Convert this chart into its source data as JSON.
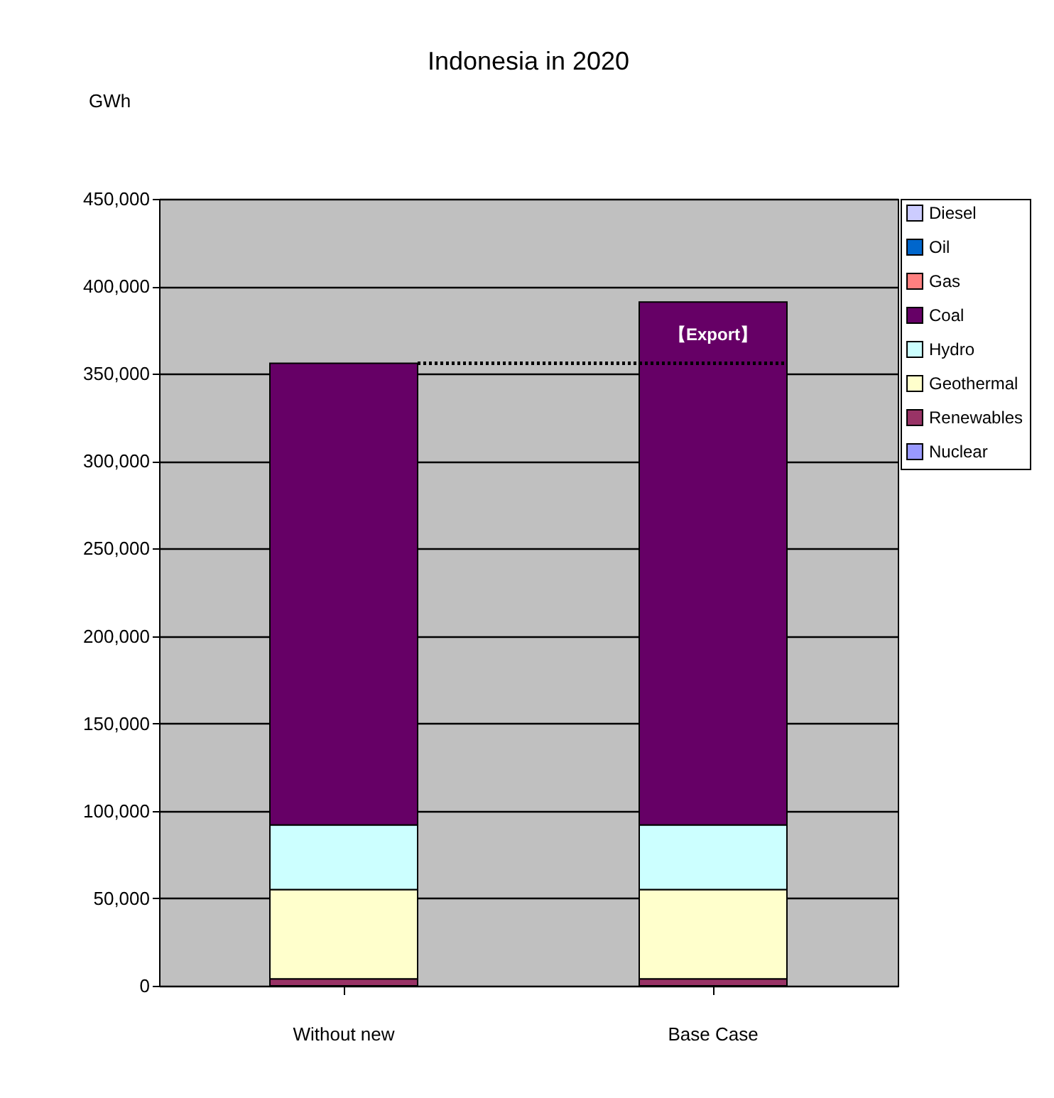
{
  "chart_data": {
    "type": "bar",
    "title": "Indonesia in 2020",
    "ylabel": "GWh",
    "categories": [
      "Without new",
      "Base Case"
    ],
    "stacked": true,
    "ylim": [
      0,
      450000
    ],
    "yticks": [
      {
        "value": 0,
        "label": "0"
      },
      {
        "value": 50000,
        "label": "50,000"
      },
      {
        "value": 100000,
        "label": "100,000"
      },
      {
        "value": 150000,
        "label": "150,000"
      },
      {
        "value": 200000,
        "label": "200,000"
      },
      {
        "value": 250000,
        "label": "250,000"
      },
      {
        "value": 300000,
        "label": "300,000"
      },
      {
        "value": 350000,
        "label": "350,000"
      },
      {
        "value": 400000,
        "label": "400,000"
      },
      {
        "value": 450000,
        "label": "450,000"
      }
    ],
    "grid": "y",
    "legend": "right",
    "series": [
      {
        "name": "Nuclear",
        "color": "#9999ff",
        "values": [
          0,
          0
        ]
      },
      {
        "name": "Renewables",
        "color": "#993366",
        "values": [
          4000,
          4000
        ]
      },
      {
        "name": "Geothermal",
        "color": "#ffffcc",
        "values": [
          51000,
          51000
        ]
      },
      {
        "name": "Hydro",
        "color": "#ccffff",
        "values": [
          37000,
          37000
        ]
      },
      {
        "name": "Coal",
        "color": "#660066",
        "values": [
          264000,
          299000
        ]
      },
      {
        "name": "Gas",
        "color": "#ff8080",
        "values": [
          0,
          0
        ]
      },
      {
        "name": "Oil",
        "color": "#0066cc",
        "values": [
          0,
          0
        ]
      },
      {
        "name": "Diesel",
        "color": "#ccccff",
        "values": [
          0,
          0
        ]
      }
    ],
    "ref_lines": [
      {
        "axis": "y",
        "value": 356000,
        "label": "【Export】",
        "color": "#000000",
        "line_style": "dotted"
      }
    ]
  }
}
